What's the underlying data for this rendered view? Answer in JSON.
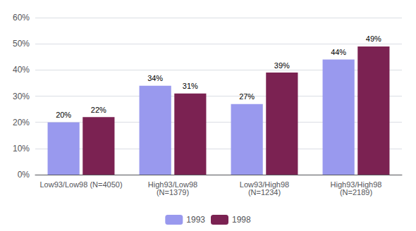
{
  "chart_data": {
    "type": "bar",
    "categories": [
      "Low93/Low98 (N=4050)",
      "High93/Low98\n(N=1379)",
      "Low93/High98\n(N=1234)",
      "High93/High98\n(N=2189)"
    ],
    "series": [
      {
        "name": "1993",
        "color": "#9999EE",
        "values": [
          20,
          34,
          27,
          44
        ],
        "value_labels": [
          "20%",
          "34%",
          "27%",
          "44%"
        ]
      },
      {
        "name": "1998",
        "color": "#7B2252",
        "values": [
          22,
          31,
          39,
          49
        ],
        "value_labels": [
          "22%",
          "31%",
          "39%",
          "49%"
        ]
      }
    ],
    "ylim": [
      0,
      60
    ],
    "yticks": [
      {
        "value": 0,
        "label": "0%"
      },
      {
        "value": 10,
        "label": "10%"
      },
      {
        "value": 20,
        "label": "20%"
      },
      {
        "value": 30,
        "label": "30%"
      },
      {
        "value": 40,
        "label": "40%"
      },
      {
        "value": 50,
        "label": "50%"
      },
      {
        "value": 60,
        "label": "60%"
      }
    ],
    "grid": true,
    "legend": "bottom",
    "data_labels": true
  }
}
